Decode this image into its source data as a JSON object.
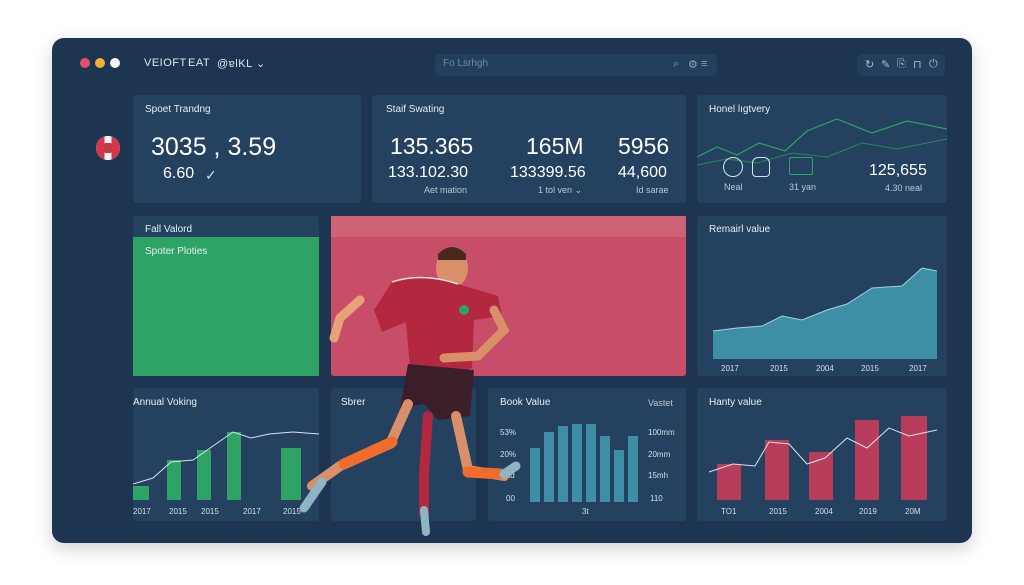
{
  "app": {
    "menu": [
      "VEIOFT",
      "EAT",
      "@ɐlKL ⌄"
    ],
    "search_placeholder": "Fo Lsrhgh",
    "toolbar_icons": [
      "refresh-icon",
      "edit-icon",
      "copy-icon",
      "lock-icon",
      "power-icon"
    ]
  },
  "cards": {
    "sport_trending": {
      "title": "Spoet Trandng",
      "value": "3035 , 3.59",
      "sub": "6.60"
    },
    "stat_sweting": {
      "title": "Staif Swating",
      "values": [
        "135.365",
        "165M",
        "5956"
      ],
      "subvalues": [
        "133.102.30",
        "133399.56",
        "44,600"
      ],
      "captions": [
        "Aet mation",
        "1 tol ven ⌄",
        "Id sarae"
      ]
    },
    "honel_lightvery": {
      "title": "Honel lıgtvery",
      "icon_labels": [
        "Neal",
        "31 yan"
      ],
      "value": "125,655",
      "sub": "4.30 neal"
    }
  },
  "fall_valord": {
    "title": "Fall Valord",
    "subtitle": "Spoter Ploties"
  },
  "remairl_value": {
    "title": "Remairl value",
    "x_labels": [
      "2017",
      "2015",
      "2004",
      "2015",
      "2017"
    ]
  },
  "annual_voking": {
    "title": "Annual Voking",
    "x_labels": [
      "2017",
      "2015",
      "2015",
      "2017",
      "2015"
    ]
  },
  "sbrer": {
    "title": "Sbrer"
  },
  "book_value": {
    "title": "Book Value",
    "right_title": "Vastet",
    "left_ticks": [
      "53%",
      "20%",
      "8id",
      "00"
    ],
    "right_ticks": [
      "100mm",
      "20mm",
      "15mh",
      "110"
    ],
    "x_label": "3t"
  },
  "hanty_value": {
    "title": "Hanty value",
    "x_labels": [
      "TO1",
      "2015",
      "2004",
      "2019",
      "20M"
    ]
  },
  "colors": {
    "window_bg": "#1d3550",
    "panel_bg": "#24415f",
    "green": "#2fa365",
    "crimson": "#b83d5b",
    "teal": "#3e8fa6",
    "line": "#d7e3ec"
  }
}
